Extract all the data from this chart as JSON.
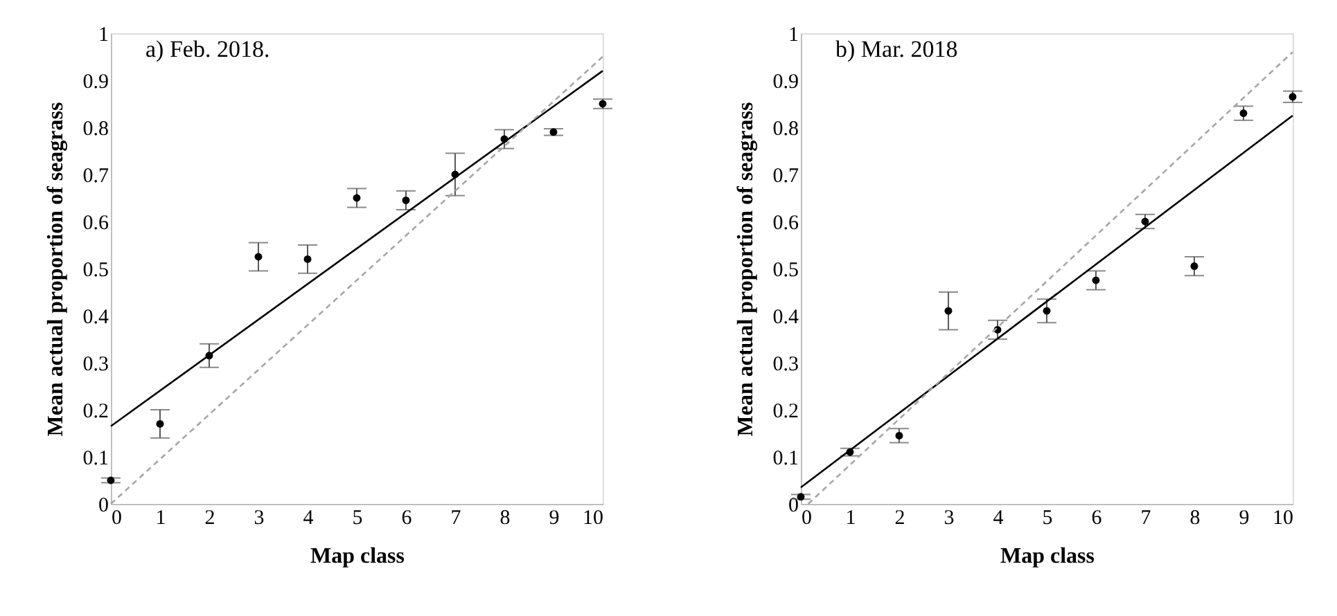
{
  "chart_data": [
    {
      "type": "scatter",
      "title": "a) Feb. 2018.",
      "xlabel": "Map class",
      "ylabel": "Mean actual proportion of seagrass",
      "xlim": [
        0,
        10
      ],
      "ylim": [
        0,
        1
      ],
      "xticks": [
        0,
        1,
        2,
        3,
        4,
        5,
        6,
        7,
        8,
        9,
        10
      ],
      "yticks": [
        0,
        0.1,
        0.2,
        0.3,
        0.4,
        0.5,
        0.6,
        0.7,
        0.8,
        0.9,
        1
      ],
      "grid": false,
      "series": [
        {
          "color": "#000000",
          "marker": "circle",
          "x": [
            0,
            1,
            2,
            3,
            4,
            5,
            6,
            7,
            8,
            9,
            10
          ],
          "values": [
            0.05,
            0.17,
            0.315,
            0.525,
            0.52,
            0.65,
            0.645,
            0.7,
            0.775,
            0.79,
            0.85
          ],
          "errors": [
            0.005,
            0.03,
            0.025,
            0.03,
            0.03,
            0.02,
            0.02,
            0.045,
            0.02,
            0.007,
            0.01
          ]
        },
        {
          "type": "line",
          "color": "#000000",
          "line_style": "solid",
          "x": [
            0,
            10
          ],
          "values": [
            0.165,
            0.92
          ]
        },
        {
          "type": "line",
          "color": "#a6a6a6",
          "line_style": "dashed",
          "x": [
            0,
            10
          ],
          "values": [
            0,
            0.95
          ]
        }
      ]
    },
    {
      "type": "scatter",
      "title": "b) Mar. 2018",
      "xlabel": "Map class",
      "ylabel": "Mean actual proportion of seagrass",
      "xlim": [
        0,
        10
      ],
      "ylim": [
        0,
        1
      ],
      "xticks": [
        0,
        1,
        2,
        3,
        4,
        5,
        6,
        7,
        8,
        9,
        10
      ],
      "yticks": [
        0,
        0.1,
        0.2,
        0.3,
        0.4,
        0.5,
        0.6,
        0.7,
        0.8,
        0.9,
        1
      ],
      "grid": false,
      "series": [
        {
          "color": "#000000",
          "marker": "circle",
          "x": [
            0,
            1,
            2,
            3,
            4,
            5,
            6,
            7,
            8,
            9,
            10
          ],
          "values": [
            0.015,
            0.11,
            0.145,
            0.41,
            0.37,
            0.41,
            0.475,
            0.6,
            0.505,
            0.83,
            0.865
          ],
          "errors": [
            0.005,
            0.008,
            0.015,
            0.04,
            0.02,
            0.025,
            0.02,
            0.015,
            0.02,
            0.015,
            0.012
          ]
        },
        {
          "type": "line",
          "color": "#000000",
          "line_style": "solid",
          "x": [
            0,
            10
          ],
          "values": [
            0.035,
            0.825
          ]
        },
        {
          "type": "line",
          "color": "#a6a6a6",
          "line_style": "dashed",
          "x": [
            0.15,
            10
          ],
          "values": [
            0,
            0.96
          ]
        }
      ]
    }
  ]
}
